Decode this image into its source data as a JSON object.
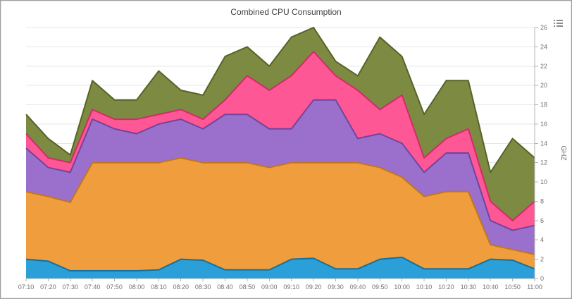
{
  "icons": {
    "export_menu_icon": "≡"
  },
  "chart_data": {
    "type": "area",
    "stacked": true,
    "title": "Combined CPU Consumption",
    "xlabel": "",
    "ylabel": "GHZ",
    "ylim": [
      0,
      26
    ],
    "ytick_step": 2,
    "y_ticks": [
      0,
      2,
      4,
      6,
      8,
      10,
      12,
      14,
      16,
      18,
      20,
      22,
      24,
      26
    ],
    "grid": true,
    "legend": "none",
    "axis_color": "#b3b3b3",
    "grid_color": "#e7e7e7",
    "categories": [
      "07:10",
      "07:20",
      "07:30",
      "07:40",
      "07:50",
      "08:00",
      "08:10",
      "08:20",
      "08:30",
      "08:40",
      "08:50",
      "09:00",
      "09:10",
      "09:20",
      "09:30",
      "09:40",
      "09:50",
      "10:00",
      "10:10",
      "10:20",
      "10:30",
      "10:40",
      "10:50",
      "11:00"
    ],
    "series": [
      {
        "name": "blue",
        "color": "#2b9fd8",
        "border": "#1470a0",
        "values": [
          2.0,
          1.8,
          0.8,
          0.8,
          0.8,
          0.8,
          0.9,
          2.0,
          1.9,
          0.9,
          0.9,
          0.9,
          2.0,
          2.1,
          1.0,
          1.0,
          2.0,
          2.2,
          1.0,
          1.0,
          1.0,
          2.0,
          1.9,
          1.0
        ]
      },
      {
        "name": "orange",
        "color": "#ef9d3d",
        "border": "#c1761b",
        "values": [
          7.0,
          6.7,
          7.1,
          11.2,
          11.2,
          11.2,
          11.1,
          10.5,
          10.1,
          11.1,
          11.1,
          10.6,
          10.0,
          9.9,
          11.0,
          11.0,
          9.5,
          8.3,
          7.5,
          8.0,
          8.0,
          1.5,
          1.1,
          1.5
        ]
      },
      {
        "name": "purple",
        "color": "#9a70cc",
        "border": "#6f459f",
        "values": [
          4.5,
          3.0,
          3.1,
          4.5,
          3.5,
          3.0,
          4.0,
          4.0,
          3.5,
          5.0,
          5.0,
          4.0,
          3.5,
          6.5,
          6.5,
          2.5,
          3.5,
          3.5,
          2.5,
          4.0,
          4.0,
          2.5,
          2.0,
          3.0
        ]
      },
      {
        "name": "pink",
        "color": "#fd5795",
        "border": "#d32a6a",
        "values": [
          1.5,
          1.0,
          1.0,
          1.0,
          1.0,
          1.5,
          1.0,
          1.0,
          1.0,
          1.5,
          4.0,
          4.0,
          5.5,
          5.0,
          2.5,
          5.0,
          2.5,
          5.0,
          1.5,
          1.5,
          2.5,
          2.0,
          1.0,
          2.5
        ]
      },
      {
        "name": "olive",
        "color": "#7c8b41",
        "border": "#576326",
        "values": [
          2.0,
          2.0,
          0.8,
          3.0,
          2.0,
          2.0,
          4.5,
          2.0,
          2.5,
          4.5,
          3.0,
          2.5,
          4.0,
          2.5,
          1.5,
          1.5,
          7.5,
          4.0,
          4.5,
          6.0,
          5.0,
          3.0,
          8.5,
          4.5
        ]
      }
    ]
  }
}
